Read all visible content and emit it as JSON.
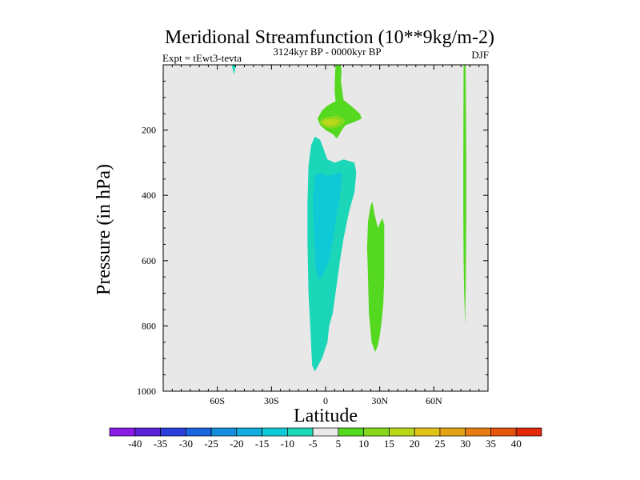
{
  "chart_data": {
    "type": "contour",
    "title": "Meridional Streamfunction (10**9kg/m-2)",
    "subtitle_left": "Expt = tEwt3-tevta",
    "subtitle_center": "3124kyr BP - 0000kyr BP",
    "subtitle_right": "DJF",
    "xlabel": "Latitude",
    "ylabel": "Pressure (in hPa)",
    "xlim": [
      -90,
      90
    ],
    "ylim": [
      1000,
      0
    ],
    "x_ticks": [
      {
        "value": -60,
        "label": "60S"
      },
      {
        "value": -30,
        "label": "30S"
      },
      {
        "value": 0,
        "label": "0"
      },
      {
        "value": 30,
        "label": "30N"
      },
      {
        "value": 60,
        "label": "60N"
      }
    ],
    "y_ticks": [
      {
        "value": 200,
        "label": "200"
      },
      {
        "value": 400,
        "label": "400"
      },
      {
        "value": 600,
        "label": "600"
      },
      {
        "value": 800,
        "label": "800"
      },
      {
        "value": 1000,
        "label": "1000"
      }
    ],
    "background_color": "#e8e8e8",
    "colorbar": {
      "labels": [
        "-40",
        "-35",
        "-30",
        "-25",
        "-20",
        "-15",
        "-10",
        "-5",
        "5",
        "10",
        "15",
        "20",
        "25",
        "30",
        "35",
        "40"
      ],
      "colors": [
        "#8a1be6",
        "#5b22d8",
        "#2d3fdd",
        "#1a64e0",
        "#138ddc",
        "#10aee0",
        "#10c9d6",
        "#1cd6b8",
        "#e8e8e8",
        "#55d820",
        "#86d81c",
        "#b8d81a",
        "#e0c416",
        "#e3a314",
        "#e67c12",
        "#e6550e",
        "#e2280a"
      ]
    },
    "regions": [
      {
        "name": "cyan-band-lat-50",
        "color": "#1cd6b8",
        "points": [
          [
            -52,
            0
          ],
          [
            -49.5,
            0
          ],
          [
            -50,
            10
          ],
          [
            -50.8,
            30
          ],
          [
            -51.6,
            10
          ]
        ]
      },
      {
        "name": "cyan-tropical-lobe",
        "color": "#1cd6b8",
        "points": [
          [
            -9.5,
            310
          ],
          [
            -8,
            245
          ],
          [
            -6,
            220
          ],
          [
            -3,
            230
          ],
          [
            1,
            290
          ],
          [
            5,
            300
          ],
          [
            10,
            290
          ],
          [
            16,
            300
          ],
          [
            17,
            330
          ],
          [
            16,
            390
          ],
          [
            13,
            450
          ],
          [
            10,
            530
          ],
          [
            8,
            600
          ],
          [
            6,
            680
          ],
          [
            4,
            760
          ],
          [
            2,
            800
          ],
          [
            1,
            850
          ],
          [
            -2,
            900
          ],
          [
            -6,
            940
          ],
          [
            -7.5,
            920
          ],
          [
            -8.5,
            800
          ],
          [
            -9.5,
            700
          ],
          [
            -10,
            550
          ],
          [
            -10,
            420
          ]
        ]
      },
      {
        "name": "blue-tropical-core",
        "color": "#10c9d6",
        "points": [
          [
            -7,
            410
          ],
          [
            -6,
            340
          ],
          [
            -3,
            330
          ],
          [
            1,
            340
          ],
          [
            5,
            335
          ],
          [
            8,
            330
          ],
          [
            9,
            340
          ],
          [
            8,
            400
          ],
          [
            6,
            470
          ],
          [
            4,
            540
          ],
          [
            2,
            600
          ],
          [
            -1,
            640
          ],
          [
            -4,
            660
          ],
          [
            -5.5,
            620
          ],
          [
            -6.5,
            520
          ]
        ]
      },
      {
        "name": "green-upper-stem",
        "color": "#55d820",
        "points": [
          [
            5.5,
            0
          ],
          [
            8.5,
            0
          ],
          [
            8.8,
            20
          ],
          [
            8.5,
            50
          ],
          [
            9.5,
            90
          ],
          [
            10,
            110
          ],
          [
            5.5,
            110
          ],
          [
            5,
            80
          ],
          [
            5.2,
            40
          ]
        ]
      },
      {
        "name": "green-upper-blob",
        "color": "#55d820",
        "points": [
          [
            -4.5,
            165
          ],
          [
            -2,
            140
          ],
          [
            1,
            125
          ],
          [
            6,
            110
          ],
          [
            10,
            108
          ],
          [
            14,
            125
          ],
          [
            19,
            150
          ],
          [
            20,
            165
          ],
          [
            16,
            175
          ],
          [
            11,
            185
          ],
          [
            9,
            200
          ],
          [
            7,
            220
          ],
          [
            6,
            225
          ],
          [
            4,
            212
          ],
          [
            0,
            200
          ],
          [
            -3,
            185
          ]
        ]
      },
      {
        "name": "lime-upper-core",
        "color": "#86d81c",
        "points": [
          [
            -3.5,
            175
          ],
          [
            -2,
            165
          ],
          [
            1,
            160
          ],
          [
            6,
            155
          ],
          [
            9,
            160
          ],
          [
            11,
            172
          ],
          [
            9,
            185
          ],
          [
            5,
            195
          ],
          [
            2,
            195
          ],
          [
            -2,
            188
          ]
        ]
      },
      {
        "name": "yellow-upper-core",
        "color": "#b8d81a",
        "points": [
          [
            -2.5,
            175
          ],
          [
            0,
            168
          ],
          [
            5,
            165
          ],
          [
            8,
            172
          ],
          [
            6,
            182
          ],
          [
            3,
            188
          ],
          [
            0,
            185
          ]
        ]
      },
      {
        "name": "green-lower-lobe",
        "color": "#55d820",
        "points": [
          [
            23.5,
            480
          ],
          [
            25,
            430
          ],
          [
            26,
            420
          ],
          [
            27,
            455
          ],
          [
            29,
            500
          ],
          [
            30.5,
            480
          ],
          [
            31.5,
            470
          ],
          [
            32.5,
            490
          ],
          [
            32.5,
            560
          ],
          [
            32.5,
            650
          ],
          [
            32,
            730
          ],
          [
            31,
            790
          ],
          [
            30,
            830
          ],
          [
            29,
            860
          ],
          [
            27.5,
            880
          ],
          [
            25.5,
            850
          ],
          [
            24,
            760
          ],
          [
            23.5,
            650
          ],
          [
            23,
            560
          ]
        ]
      },
      {
        "name": "green-band-lat-77",
        "color": "#55d820",
        "points": [
          [
            76.5,
            0
          ],
          [
            77.6,
            0
          ],
          [
            77.8,
            150
          ],
          [
            78,
            300
          ],
          [
            78,
            450
          ],
          [
            77.8,
            600
          ],
          [
            77.6,
            700
          ],
          [
            77.3,
            800
          ],
          [
            76.8,
            700
          ],
          [
            76.5,
            600
          ],
          [
            76.3,
            450
          ],
          [
            76.3,
            300
          ],
          [
            76.4,
            150
          ]
        ]
      }
    ]
  }
}
